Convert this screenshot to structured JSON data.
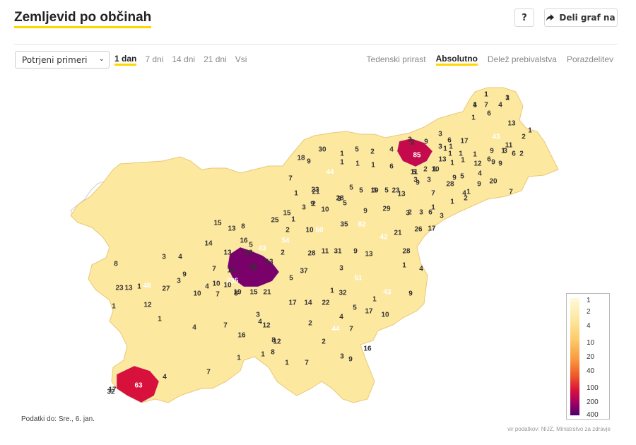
{
  "header": {
    "title": "Zemljevid po občinah",
    "help_label": "?",
    "share_label": "Deli graf na"
  },
  "filters": {
    "measure": "Potrjeni primeri",
    "time_tabs": [
      "1 dan",
      "7 dni",
      "14 dni",
      "21 dni",
      "Vsi"
    ],
    "time_active": "1 dan",
    "view_tabs": [
      "Tedenski prirast",
      "Absolutno",
      "Delež prebivalstva",
      "Porazdelitev"
    ],
    "view_active": "Absolutno"
  },
  "chart_data": {
    "type": "choropleth",
    "title": "Zemljevid po občinah",
    "legend": {
      "labels": [
        "1",
        "2",
        "4",
        "10",
        "20",
        "40",
        "100",
        "200",
        "400"
      ],
      "colors": [
        "#fff9dc",
        "#fde8a0",
        "#fccc6b",
        "#f89a42",
        "#ef5a2a",
        "#d8103c",
        "#9c0065",
        "#4b006d"
      ],
      "placement": "bottom-right"
    },
    "values": [
      1,
      3,
      4,
      7,
      4,
      6,
      1,
      13,
      1,
      2,
      43,
      6,
      3,
      9,
      17,
      1,
      3,
      1,
      1,
      1,
      1,
      11,
      2,
      6,
      3,
      9,
      85,
      2,
      3,
      1,
      30,
      1,
      5,
      2,
      4,
      9,
      6,
      12,
      13,
      1,
      1,
      18,
      9,
      1,
      1,
      1,
      6,
      1,
      9,
      44,
      10,
      11,
      2,
      5,
      3,
      3,
      9,
      7,
      28,
      4,
      5,
      4,
      20,
      9,
      7,
      23,
      9,
      5,
      7,
      5,
      3,
      21,
      1,
      5,
      19,
      3,
      13,
      2,
      3,
      28,
      23,
      29,
      1,
      2,
      3,
      6,
      3,
      1,
      2,
      1,
      9,
      25,
      35,
      82,
      42,
      21,
      26,
      17,
      3,
      5,
      9,
      10,
      10,
      1,
      15,
      2,
      60,
      15,
      13,
      8,
      16,
      54,
      43,
      28,
      11,
      31,
      9,
      13,
      28,
      14,
      13,
      5,
      23,
      2,
      1,
      4,
      7,
      13,
      235,
      10,
      4,
      11,
      13,
      37,
      3,
      51,
      43,
      9,
      8,
      3,
      4,
      9,
      3,
      1,
      10,
      7,
      19,
      15,
      21,
      5,
      14,
      22,
      32,
      17,
      1,
      1,
      5,
      1,
      13,
      48,
      27,
      4,
      10,
      8,
      3,
      4,
      12,
      2,
      44,
      4,
      7,
      17,
      10,
      23,
      12,
      1,
      4,
      7,
      16,
      12,
      8,
      8,
      2,
      3,
      7,
      9,
      16,
      32,
      17,
      63,
      4,
      7,
      1,
      1,
      1,
      1,
      1,
      1
    ]
  },
  "footer": {
    "updated": "Podatki do: Sre., 6. jan.",
    "source": "vir podatkov: NIJZ, Ministrstvo za zdravje"
  }
}
